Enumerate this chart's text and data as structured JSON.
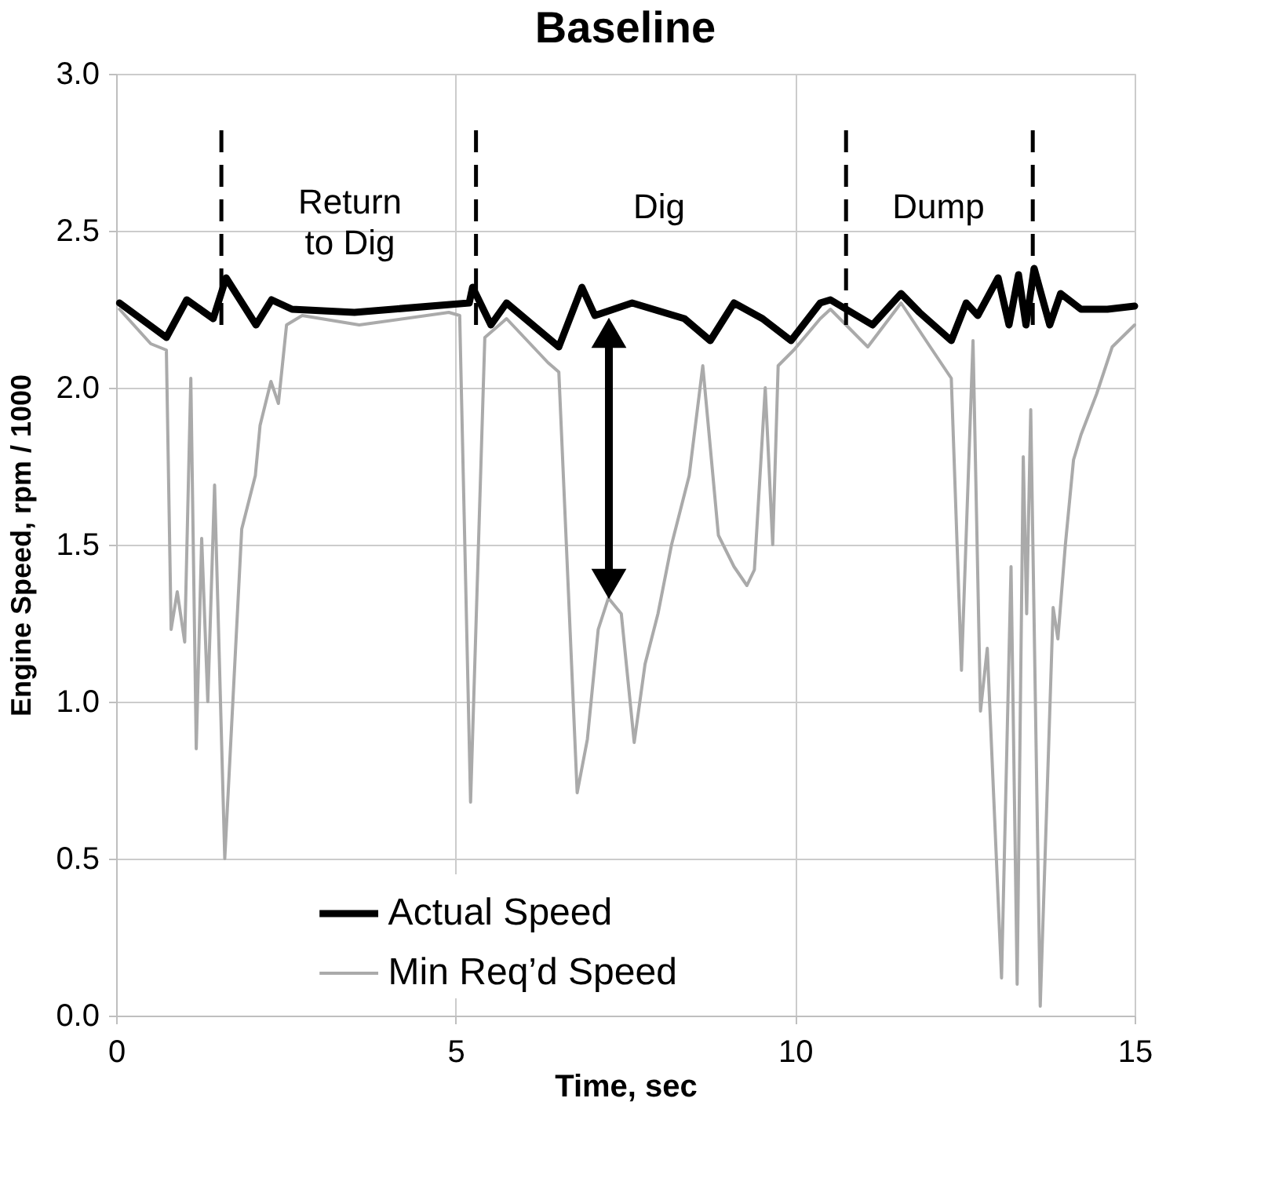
{
  "chart_data": {
    "type": "line",
    "title": "Baseline",
    "xlabel": "Time, sec",
    "ylabel": "Engine Speed, rpm / 1000",
    "xlim": [
      0,
      15
    ],
    "xticks": [
      0,
      5,
      10,
      15
    ],
    "ylim": [
      0,
      3
    ],
    "yticks": [
      {
        "value": 0,
        "label": "0.0"
      },
      {
        "value": 0.5,
        "label": "0.5"
      },
      {
        "value": 1,
        "label": "1.0"
      },
      {
        "value": 1.5,
        "label": "1.5"
      },
      {
        "value": 2,
        "label": "2.0"
      },
      {
        "value": 2.5,
        "label": "2.5"
      },
      {
        "value": 3,
        "label": "3.0"
      }
    ],
    "grid": true,
    "legend": "bottom",
    "marker": "none",
    "line_style": "solid",
    "series": [
      {
        "name": "Actual Speed",
        "color": "#000000",
        "x": [
          0.05,
          0.74,
          1.04,
          1.43,
          1.62,
          2.06,
          2.29,
          2.59,
          3.51,
          5.2,
          5.25,
          5.52,
          5.75,
          6.52,
          6.86,
          7.05,
          7.6,
          8.37,
          8.75,
          9.1,
          9.52,
          9.94,
          10.37,
          10.52,
          11.14,
          11.56,
          11.83,
          12.3,
          12.52,
          12.69,
          12.99,
          13.15,
          13.29,
          13.4,
          13.52,
          13.75,
          13.91,
          14.21,
          14.6,
          15.0
        ],
        "values": [
          2.27,
          2.16,
          2.28,
          2.22,
          2.35,
          2.2,
          2.28,
          2.25,
          2.24,
          2.27,
          2.32,
          2.2,
          2.27,
          2.13,
          2.32,
          2.23,
          2.27,
          2.22,
          2.15,
          2.27,
          2.22,
          2.15,
          2.27,
          2.28,
          2.2,
          2.3,
          2.24,
          2.15,
          2.27,
          2.23,
          2.35,
          2.2,
          2.36,
          2.2,
          2.38,
          2.2,
          2.3,
          2.25,
          2.25,
          2.26
        ]
      },
      {
        "name": "Min Req’d Speed",
        "color": "#aaaaaa",
        "x": [
          0.05,
          0.51,
          0.74,
          0.81,
          0.9,
          1.01,
          1.1,
          1.18,
          1.26,
          1.35,
          1.45,
          1.6,
          1.85,
          2.05,
          2.12,
          2.28,
          2.39,
          2.51,
          2.74,
          3.58,
          4.9,
          5.06,
          5.22,
          5.43,
          5.75,
          6.36,
          6.52,
          6.79,
          6.94,
          7.1,
          7.25,
          7.44,
          7.63,
          7.79,
          7.98,
          8.18,
          8.44,
          8.64,
          8.87,
          9.1,
          9.29,
          9.4,
          9.56,
          9.67,
          9.75,
          9.98,
          10.37,
          10.52,
          11.07,
          11.56,
          11.99,
          12.3,
          12.45,
          12.62,
          12.73,
          12.83,
          13.04,
          13.18,
          13.27,
          13.36,
          13.41,
          13.47,
          13.61,
          13.8,
          13.87,
          13.98,
          14.1,
          14.21,
          14.44,
          14.67,
          15.0
        ],
        "values": [
          2.25,
          2.14,
          2.12,
          1.23,
          1.35,
          1.19,
          2.03,
          0.85,
          1.52,
          1.0,
          1.69,
          0.5,
          1.55,
          1.72,
          1.88,
          2.02,
          1.95,
          2.2,
          2.23,
          2.2,
          2.24,
          2.23,
          0.68,
          2.16,
          2.22,
          2.08,
          2.05,
          0.71,
          0.88,
          1.23,
          1.33,
          1.28,
          0.87,
          1.12,
          1.28,
          1.5,
          1.72,
          2.07,
          1.53,
          1.43,
          1.37,
          1.42,
          2.0,
          1.5,
          2.07,
          2.12,
          2.22,
          2.25,
          2.13,
          2.27,
          2.13,
          2.03,
          1.1,
          2.15,
          0.97,
          1.17,
          0.12,
          1.43,
          0.1,
          1.78,
          1.28,
          1.93,
          0.03,
          1.3,
          1.2,
          1.5,
          1.77,
          1.85,
          1.98,
          2.13,
          2.2
        ]
      }
    ],
    "ref_lines": [
      {
        "axis": "x",
        "value": 1.55,
        "color": "#000000",
        "line_style": "dashed"
      },
      {
        "axis": "x",
        "value": 5.3,
        "color": "#000000",
        "line_style": "dashed"
      },
      {
        "axis": "x",
        "value": 10.75,
        "color": "#000000",
        "line_style": "dashed"
      },
      {
        "axis": "x",
        "value": 13.5,
        "color": "#000000",
        "line_style": "dashed"
      }
    ],
    "annotations": [
      "Return\nto Dig",
      "Dig",
      "Dump"
    ]
  }
}
